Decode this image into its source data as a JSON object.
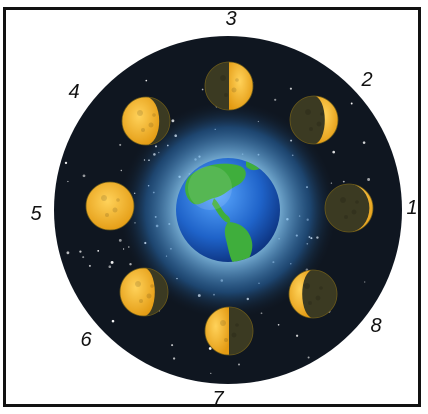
{
  "phase_labels": [
    "1",
    "2",
    "3",
    "4",
    "5",
    "6",
    "7",
    "8"
  ],
  "colors": {
    "space": "#0f1620",
    "moon_lit": "#f4b425",
    "moon_dark": "#3b3a22",
    "earth_ocean": "#1f63c9",
    "earth_land": "#3fae3c",
    "glow": "#9fdcff"
  }
}
